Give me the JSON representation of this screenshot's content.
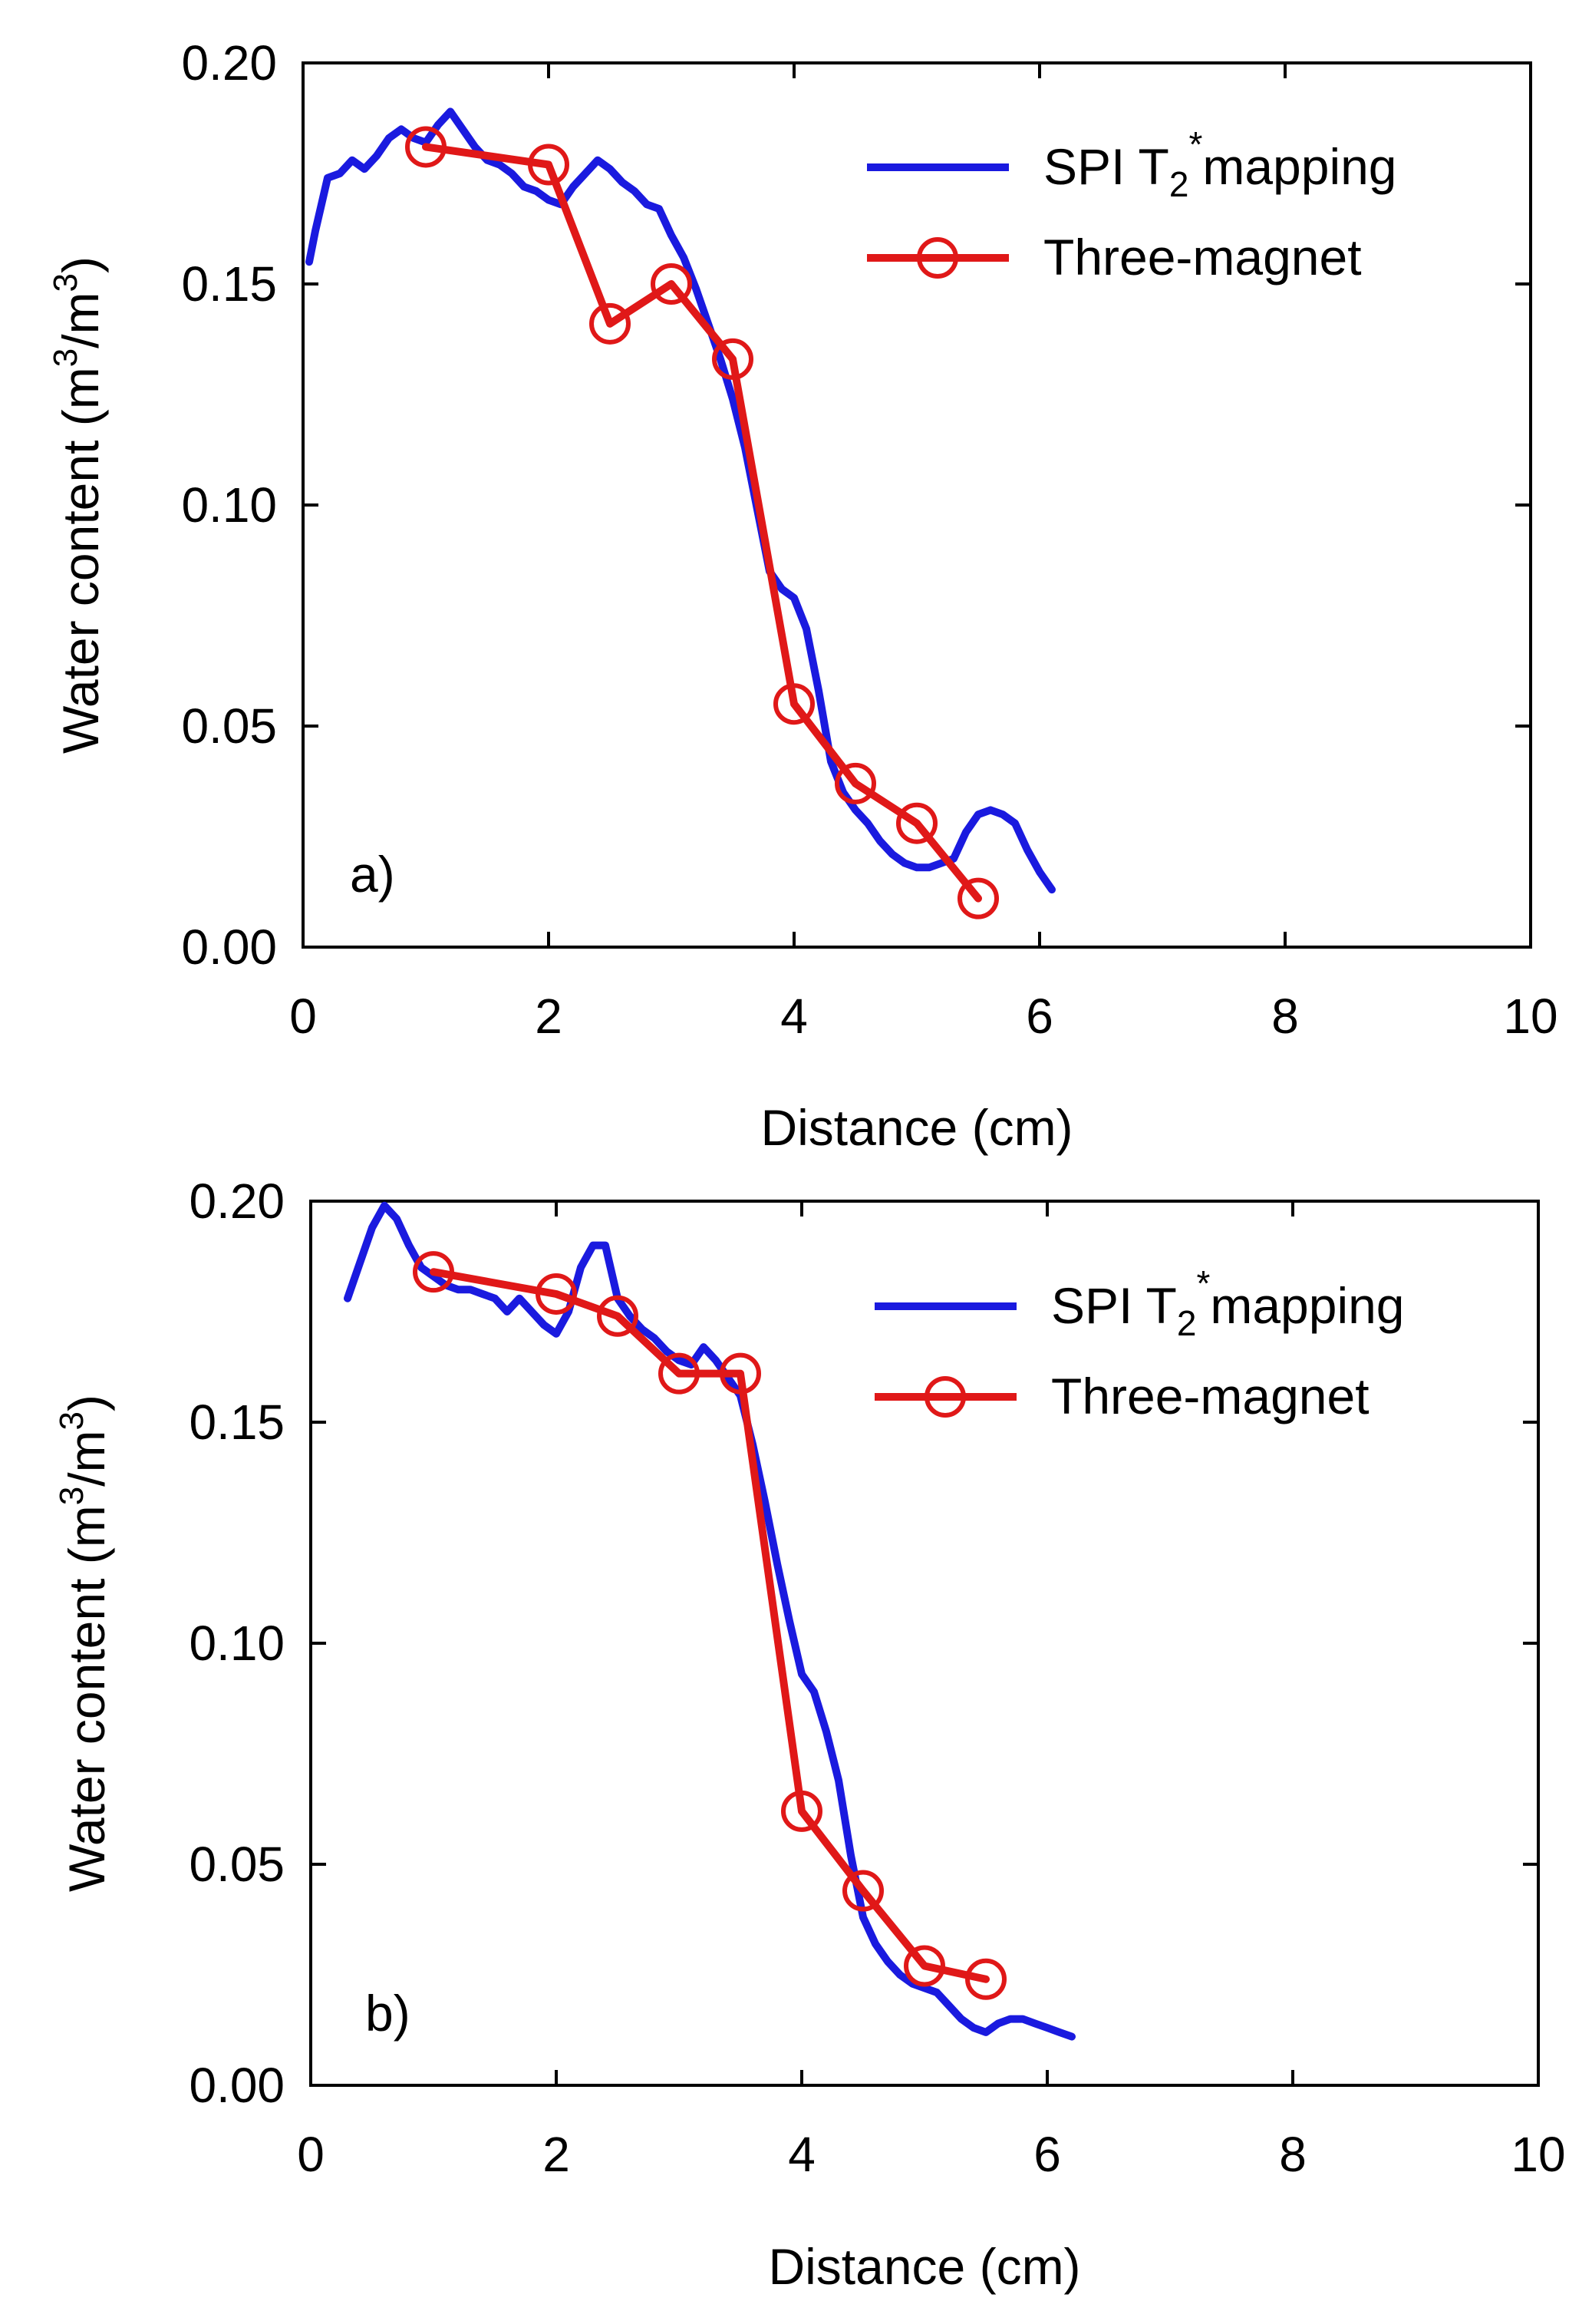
{
  "colors": {
    "spi": "#1a1adf",
    "magnet": "#e01818",
    "axis": "#000000"
  },
  "chart_data": [
    {
      "type": "line",
      "panel_label": "a)",
      "title": "",
      "xlabel": "Distance (cm)",
      "ylabel": "Water content (m3/m3)",
      "ylabel_parts": {
        "main": "Water content (m",
        "sup1": "3",
        "mid": "/m",
        "sup2": "3",
        "end": ")"
      },
      "xlim": [
        0,
        10
      ],
      "ylim": [
        0,
        0.2
      ],
      "xticks": [
        0,
        2,
        4,
        6,
        8,
        10
      ],
      "xtick_labels": [
        "0",
        "2",
        "4",
        "6",
        "8",
        "10"
      ],
      "yticks": [
        0,
        0.05,
        0.1,
        0.15,
        0.2
      ],
      "ytick_labels": [
        "0.00",
        "0.05",
        "0.10",
        "0.15",
        "0.20"
      ],
      "legend_position": "top-right",
      "series": [
        {
          "name": "SPI T2*mapping",
          "legend": {
            "main": "SPI T",
            "sub": "2",
            "sup": "*",
            "rest": "mapping"
          },
          "style": "line",
          "x": [
            0.05,
            0.1,
            0.2,
            0.3,
            0.4,
            0.5,
            0.6,
            0.7,
            0.8,
            0.9,
            1.0,
            1.1,
            1.2,
            1.3,
            1.4,
            1.5,
            1.6,
            1.7,
            1.8,
            1.9,
            2.0,
            2.1,
            2.2,
            2.3,
            2.4,
            2.5,
            2.6,
            2.7,
            2.8,
            2.9,
            3.0,
            3.1,
            3.2,
            3.3,
            3.4,
            3.5,
            3.6,
            3.7,
            3.8,
            3.9,
            4.0,
            4.1,
            4.2,
            4.3,
            4.4,
            4.5,
            4.6,
            4.7,
            4.8,
            4.9,
            5.0,
            5.1,
            5.2,
            5.3,
            5.4,
            5.5,
            5.6,
            5.7,
            5.8,
            5.9,
            6.0,
            6.1
          ],
          "y": [
            0.155,
            0.162,
            0.174,
            0.175,
            0.178,
            0.176,
            0.179,
            0.183,
            0.185,
            0.183,
            0.182,
            0.186,
            0.189,
            0.185,
            0.181,
            0.178,
            0.177,
            0.175,
            0.172,
            0.171,
            0.169,
            0.168,
            0.172,
            0.175,
            0.178,
            0.176,
            0.173,
            0.171,
            0.168,
            0.167,
            0.161,
            0.156,
            0.149,
            0.141,
            0.133,
            0.124,
            0.113,
            0.099,
            0.085,
            0.081,
            0.079,
            0.072,
            0.058,
            0.042,
            0.035,
            0.031,
            0.028,
            0.024,
            0.021,
            0.019,
            0.018,
            0.018,
            0.019,
            0.02,
            0.026,
            0.03,
            0.031,
            0.03,
            0.028,
            0.022,
            0.017,
            0.013
          ]
        },
        {
          "name": "Three-magnet",
          "style": "line-marker",
          "x": [
            1.0,
            2.0,
            2.5,
            3.0,
            3.5,
            4.0,
            4.5,
            5.0,
            5.5
          ],
          "y": [
            0.181,
            0.177,
            0.141,
            0.15,
            0.133,
            0.055,
            0.037,
            0.028,
            0.011
          ]
        }
      ]
    },
    {
      "type": "line",
      "panel_label": "b)",
      "title": "",
      "xlabel": "Distance (cm)",
      "ylabel": "Water content (m3/m3)",
      "ylabel_parts": {
        "main": "Water content (m",
        "sup1": "3",
        "mid": "/m",
        "sup2": "3",
        "end": ")"
      },
      "xlim": [
        0,
        10
      ],
      "ylim": [
        0,
        0.2
      ],
      "xticks": [
        0,
        2,
        4,
        6,
        8,
        10
      ],
      "xtick_labels": [
        "0",
        "2",
        "4",
        "6",
        "8",
        "10"
      ],
      "yticks": [
        0,
        0.05,
        0.1,
        0.15,
        0.2
      ],
      "ytick_labels": [
        "0.00",
        "0.05",
        "0.10",
        "0.15",
        "0.20"
      ],
      "legend_position": "top-right",
      "series": [
        {
          "name": "SPI T2*mapping",
          "legend": {
            "main": "SPI T",
            "sub": "2",
            "sup": "*",
            "rest": "mapping"
          },
          "style": "line",
          "x": [
            0.3,
            0.4,
            0.5,
            0.6,
            0.7,
            0.8,
            0.9,
            1.0,
            1.1,
            1.2,
            1.3,
            1.4,
            1.5,
            1.6,
            1.7,
            1.8,
            1.9,
            2.0,
            2.1,
            2.2,
            2.3,
            2.4,
            2.5,
            2.6,
            2.7,
            2.8,
            2.9,
            3.0,
            3.1,
            3.2,
            3.3,
            3.4,
            3.5,
            3.6,
            3.7,
            3.8,
            3.9,
            4.0,
            4.1,
            4.2,
            4.3,
            4.4,
            4.5,
            4.6,
            4.7,
            4.8,
            4.9,
            5.0,
            5.1,
            5.2,
            5.3,
            5.4,
            5.5,
            5.6,
            5.7,
            5.8,
            5.9,
            6.0,
            6.1,
            6.2
          ],
          "y": [
            0.178,
            0.186,
            0.194,
            0.199,
            0.196,
            0.19,
            0.185,
            0.183,
            0.181,
            0.18,
            0.18,
            0.179,
            0.178,
            0.175,
            0.178,
            0.175,
            0.172,
            0.17,
            0.175,
            0.185,
            0.19,
            0.19,
            0.178,
            0.174,
            0.171,
            0.169,
            0.166,
            0.164,
            0.163,
            0.167,
            0.164,
            0.16,
            0.156,
            0.145,
            0.132,
            0.118,
            0.105,
            0.093,
            0.089,
            0.08,
            0.069,
            0.052,
            0.038,
            0.032,
            0.028,
            0.025,
            0.023,
            0.022,
            0.021,
            0.018,
            0.015,
            0.013,
            0.012,
            0.014,
            0.015,
            0.015,
            0.014,
            0.013,
            0.012,
            0.011
          ]
        },
        {
          "name": "Three-magnet",
          "style": "line-marker",
          "x": [
            1.0,
            2.0,
            2.5,
            3.0,
            3.5,
            4.0,
            4.5,
            5.0,
            5.5
          ],
          "y": [
            0.184,
            0.179,
            0.174,
            0.161,
            0.161,
            0.062,
            0.044,
            0.027,
            0.024
          ]
        }
      ]
    }
  ]
}
